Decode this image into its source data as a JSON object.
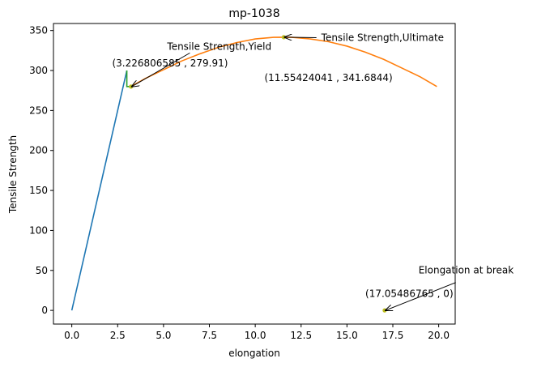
{
  "chart_data": {
    "type": "line",
    "title": "mp-1038",
    "xlabel": "elongation",
    "ylabel": "Tensile Strength",
    "xlim": [
      -1.0,
      20.9
    ],
    "ylim": [
      -17.1,
      358.8
    ],
    "x_ticks": [
      0.0,
      2.5,
      5.0,
      7.5,
      10.0,
      12.5,
      15.0,
      17.5,
      20.0
    ],
    "x_tick_labels": [
      "0.0",
      "2.5",
      "5.0",
      "7.5",
      "10.0",
      "12.5",
      "15.0",
      "17.5",
      "20.0"
    ],
    "y_ticks": [
      0,
      50,
      100,
      150,
      200,
      250,
      300,
      350
    ],
    "y_tick_labels": [
      "0",
      "50",
      "100",
      "150",
      "200",
      "250",
      "300",
      "350"
    ],
    "grid": false,
    "series": [
      {
        "color": "#1f77b4",
        "kind": "line",
        "x": [
          0.0,
          3.0
        ],
        "y": [
          0.0,
          300.0
        ]
      },
      {
        "color": "#ff7f0e",
        "kind": "line",
        "x": [
          3.226806585,
          4.0,
          5.0,
          6.0,
          7.0,
          8.0,
          9.0,
          10.0,
          11.0,
          11.55424041,
          12.0,
          13.0,
          14.0,
          15.0,
          16.0,
          17.0,
          18.0,
          19.0,
          19.9
        ],
        "y": [
          279.91,
          290.0,
          301.0,
          312.0,
          321.0,
          329.0,
          335.0,
          339.5,
          341.5,
          341.6844,
          341.5,
          339.5,
          336.0,
          330.5,
          323.0,
          314.0,
          303.0,
          292.0,
          280.0
        ]
      },
      {
        "color": "#2ca02c",
        "kind": "line",
        "x": [
          3.0,
          3.0,
          3.226806585
        ],
        "y": [
          300.0,
          279.91,
          279.91
        ]
      },
      {
        "color": "#bcbd22",
        "kind": "markers",
        "x": [
          3.226806585,
          11.55424041,
          17.05486765
        ],
        "y": [
          279.91,
          341.6844,
          0.0
        ]
      }
    ],
    "annotations": [
      {
        "label": "Tensile Strength,Yield",
        "coord_label": "(3.226806585 , 279.91)",
        "x": 3.226806585,
        "y": 279.91,
        "text_x": 5.2,
        "text_y": 326.0,
        "coord_x": 2.2,
        "coord_y": 305.0
      },
      {
        "label": "Tensile Strength,Ultimate",
        "coord_label": "(11.55424041 , 341.6844)",
        "x": 11.55424041,
        "y": 341.6844,
        "text_x": 13.6,
        "text_y": 337.0,
        "coord_x": 10.5,
        "coord_y": 287.0
      },
      {
        "label": "Elongation at break",
        "coord_label": "(17.05486765 , 0)",
        "x": 17.05486765,
        "y": 0.0,
        "text_x": 18.9,
        "text_y": 46.0,
        "coord_x": 16.0,
        "coord_y": 17.0
      }
    ]
  }
}
